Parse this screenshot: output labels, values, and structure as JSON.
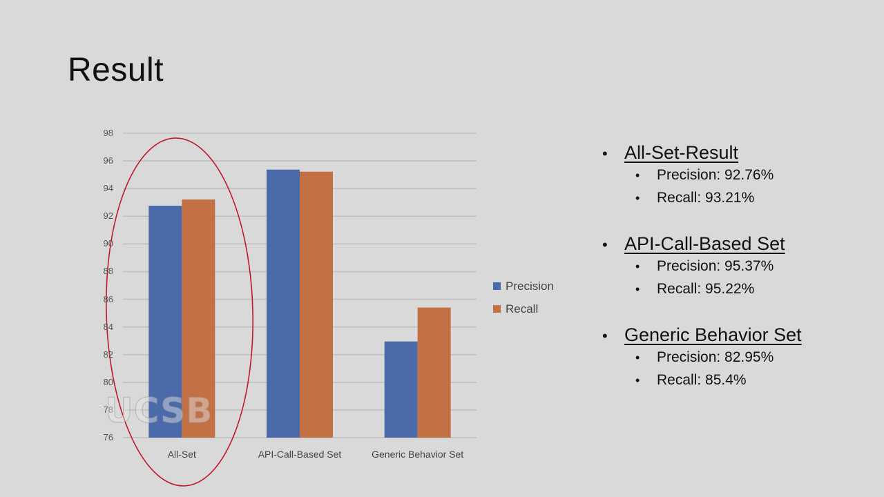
{
  "slide": {
    "title": "Result"
  },
  "chart_data": {
    "type": "bar",
    "title": "",
    "xlabel": "",
    "ylabel": "",
    "categories": [
      "All-Set",
      "API-Call-Based Set",
      "Generic Behavior Set"
    ],
    "series": [
      {
        "name": "Precision",
        "color": "#4a6aaa",
        "values": [
          92.76,
          95.37,
          82.95
        ]
      },
      {
        "name": "Recall",
        "color": "#c37044",
        "values": [
          93.21,
          95.22,
          85.4
        ]
      }
    ],
    "ylim": [
      76,
      98
    ],
    "yticks": [
      76,
      78,
      80,
      82,
      84,
      86,
      88,
      90,
      92,
      94,
      96,
      98
    ],
    "grid": true,
    "legend_position": "right",
    "annotations": [
      {
        "type": "ellipse",
        "color": "#c0182c",
        "target": "All-Set",
        "note": "hand-drawn red ellipse highlighting All-Set group"
      }
    ]
  },
  "legend": {
    "items": [
      {
        "label": "Precision",
        "color": "#4a6aaa"
      },
      {
        "label": "Recall",
        "color": "#c37044"
      }
    ]
  },
  "watermark": {
    "text": "UCSB"
  },
  "results": {
    "groups": [
      {
        "title": "All-Set-Result",
        "metrics": [
          {
            "text": "Precision: 92.76%"
          },
          {
            "text": "Recall: 93.21%"
          }
        ]
      },
      {
        "title": "API-Call-Based Set",
        "metrics": [
          {
            "text": "Precision: 95.37%"
          },
          {
            "text": "Recall: 95.22%"
          }
        ]
      },
      {
        "title": "Generic Behavior Set",
        "metrics": [
          {
            "text": "Precision: 82.95%"
          },
          {
            "text": "Recall: 85.4%"
          }
        ]
      }
    ],
    "bullet": "•"
  }
}
